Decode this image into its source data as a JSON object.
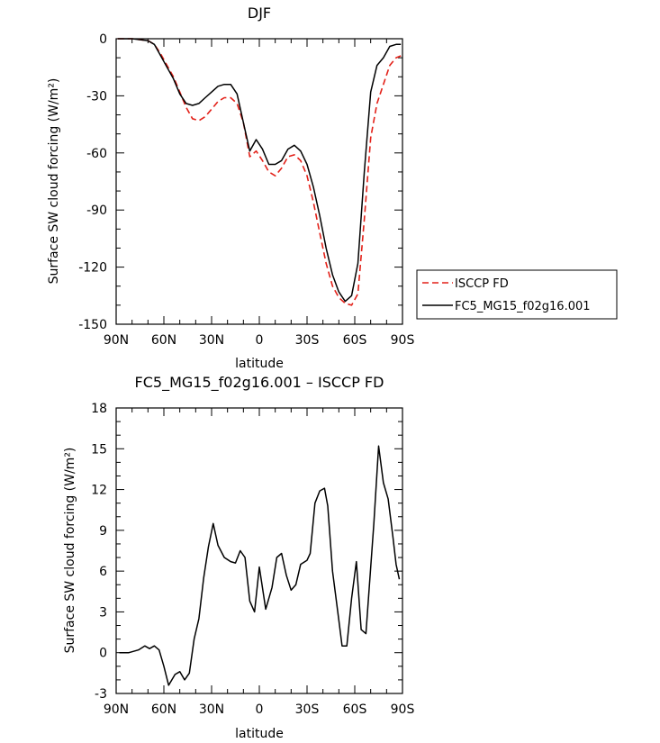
{
  "chart_data": [
    {
      "type": "line",
      "title": "DJF",
      "xlabel": "latitude",
      "ylabel": "Surface SW cloud forcing (W/m²)",
      "xlim": [
        -90,
        90
      ],
      "ylim": [
        -150,
        0
      ],
      "xticks": [
        "90N",
        "60N",
        "30N",
        "0",
        "30S",
        "60S",
        "90S"
      ],
      "yticks": [
        "0",
        "-30",
        "-60",
        "-90",
        "-120",
        "-150"
      ],
      "grid": false,
      "legend": "right",
      "series": [
        {
          "name": "ISCCP FD",
          "color": "#e32119",
          "style": "dashed",
          "x": [
            -89,
            -80,
            -70,
            -66,
            -62,
            -58,
            -54,
            -50,
            -46,
            -42,
            -38,
            -34,
            -30,
            -26,
            -22,
            -18,
            -14,
            -10,
            -6,
            -2,
            2,
            6,
            10,
            14,
            18,
            22,
            26,
            30,
            34,
            38,
            42,
            46,
            50,
            54,
            58,
            62,
            66,
            70,
            74,
            78,
            82,
            86,
            89
          ],
          "y": [
            0,
            0,
            -1,
            -3,
            -8,
            -14,
            -20,
            -28,
            -36,
            -42,
            -43,
            -41,
            -37,
            -33,
            -31,
            -31,
            -34,
            -44,
            -62,
            -59,
            -64,
            -70,
            -72,
            -68,
            -62,
            -61,
            -64,
            -72,
            -86,
            -102,
            -118,
            -130,
            -136,
            -139,
            -140,
            -134,
            -95,
            -52,
            -34,
            -24,
            -14,
            -10,
            -9
          ]
        },
        {
          "name": "FC5_MG15_f02g16.001",
          "color": "#000000",
          "style": "solid",
          "x": [
            -89,
            -80,
            -70,
            -66,
            -62,
            -58,
            -54,
            -50,
            -46,
            -42,
            -38,
            -34,
            -30,
            -26,
            -22,
            -18,
            -14,
            -10,
            -6,
            -2,
            2,
            6,
            10,
            14,
            18,
            22,
            26,
            30,
            34,
            38,
            42,
            46,
            50,
            54,
            58,
            62,
            66,
            70,
            74,
            78,
            82,
            86,
            89
          ],
          "y": [
            0,
            0,
            -1,
            -3,
            -9,
            -15,
            -21,
            -29,
            -34,
            -35,
            -34,
            -31,
            -28,
            -25,
            -24,
            -24,
            -29,
            -44,
            -59,
            -53,
            -58,
            -66,
            -66,
            -64,
            -58,
            -56,
            -59,
            -66,
            -78,
            -93,
            -110,
            -124,
            -133,
            -138,
            -135,
            -118,
            -70,
            -28,
            -14,
            -10,
            -4,
            -3,
            -3
          ]
        }
      ]
    },
    {
      "type": "line",
      "title": "FC5_MG15_f02g16.001 – ISCCP FD",
      "xlabel": "latitude",
      "ylabel": "Surface SW cloud forcing (W/m²)",
      "xlim": [
        -90,
        90
      ],
      "ylim": [
        -3,
        18
      ],
      "xticks": [
        "90N",
        "60N",
        "30N",
        "0",
        "30S",
        "60S",
        "90S"
      ],
      "yticks": [
        "18",
        "15",
        "12",
        "9",
        "6",
        "3",
        "0",
        "-3"
      ],
      "grid": false,
      "series": [
        {
          "color": "#000000",
          "style": "solid",
          "x": [
            -88,
            -82,
            -76,
            -72,
            -69,
            -66,
            -63,
            -60,
            -57,
            -53,
            -50,
            -47,
            -44,
            -41,
            -38,
            -35,
            -32,
            -29,
            -26,
            -22,
            -18,
            -15,
            -12,
            -9,
            -6,
            -3,
            0,
            4,
            8,
            11,
            14,
            17,
            20,
            23,
            26,
            30,
            32,
            35,
            38,
            41,
            43,
            46,
            50,
            52,
            55,
            58,
            61,
            64,
            67,
            72,
            75,
            78,
            81,
            84,
            86,
            88
          ],
          "y": [
            0,
            0,
            0.2,
            0.5,
            0.3,
            0.5,
            0.2,
            -1.0,
            -2.4,
            -1.6,
            -1.4,
            -2.0,
            -1.5,
            1.0,
            2.5,
            5.5,
            7.8,
            9.5,
            7.9,
            7.0,
            6.7,
            6.6,
            7.5,
            7.0,
            3.8,
            3.0,
            6.3,
            3.2,
            4.8,
            7.0,
            7.3,
            5.7,
            4.6,
            5.0,
            6.5,
            6.8,
            7.3,
            11.0,
            11.9,
            12.1,
            10.8,
            6.0,
            2.4,
            0.5,
            0.5,
            4.0,
            6.7,
            1.7,
            1.4,
            9.5,
            15.2,
            12.5,
            11.3,
            8.5,
            6.5,
            5.4
          ]
        }
      ]
    }
  ]
}
